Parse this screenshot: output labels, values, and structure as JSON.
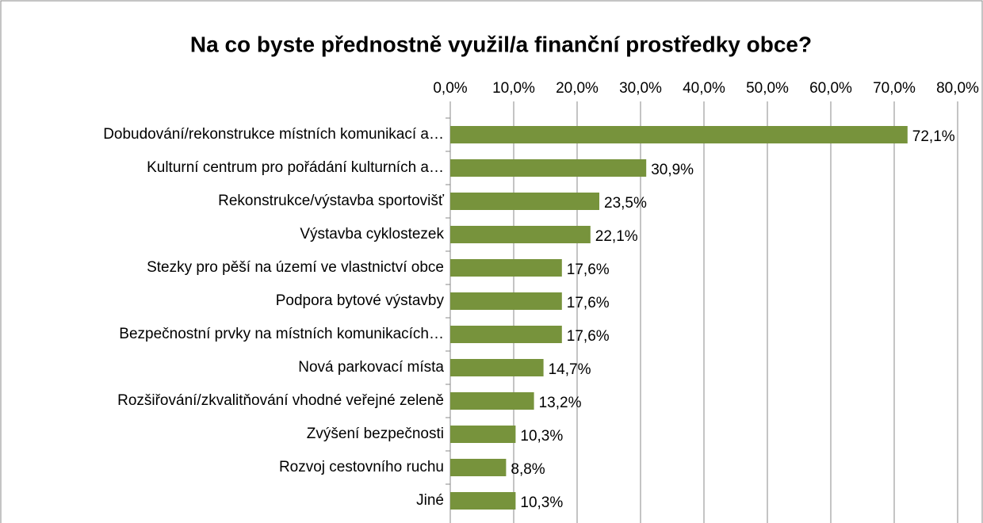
{
  "chart_data": {
    "type": "barh",
    "title": "Na co byste přednostně využil/a finanční prostředky obce?",
    "categories": [
      "Dobudování/rekonstrukce místních komunikací a…",
      "Kulturní centrum pro pořádání kulturních a…",
      "Rekonstrukce/výstavba sportovišť",
      "Výstavba cyklostezek",
      "Stezky pro pěší na území ve vlastnictví obce",
      "Podpora bytové výstavby",
      "Bezpečnostní prvky na místních komunikacích…",
      "Nová parkovací místa",
      "Rozšiřování/zkvalitňování vhodné veřejné zeleně",
      "Zvýšení bezpečnosti",
      "Rozvoj cestovního ruchu",
      "Jiné"
    ],
    "values": [
      72.1,
      30.9,
      23.5,
      22.1,
      17.6,
      17.6,
      17.6,
      14.7,
      13.2,
      10.3,
      8.8,
      10.3
    ],
    "value_labels": [
      "72,1%",
      "30,9%",
      "23,5%",
      "22,1%",
      "17,6%",
      "17,6%",
      "17,6%",
      "14,7%",
      "13,2%",
      "10,3%",
      "8,8%",
      "10,3%"
    ],
    "color": "#77933c",
    "xlim": [
      0,
      80
    ],
    "xticks": [
      {
        "value": 0,
        "label": "0,0%"
      },
      {
        "value": 10,
        "label": "10,0%"
      },
      {
        "value": 20,
        "label": "20,0%"
      },
      {
        "value": 30,
        "label": "30,0%"
      },
      {
        "value": 40,
        "label": "40,0%"
      },
      {
        "value": 50,
        "label": "50,0%"
      },
      {
        "value": 60,
        "label": "60,0%"
      },
      {
        "value": 70,
        "label": "70,0%"
      },
      {
        "value": 80,
        "label": "80,0%"
      }
    ],
    "grid": true
  }
}
